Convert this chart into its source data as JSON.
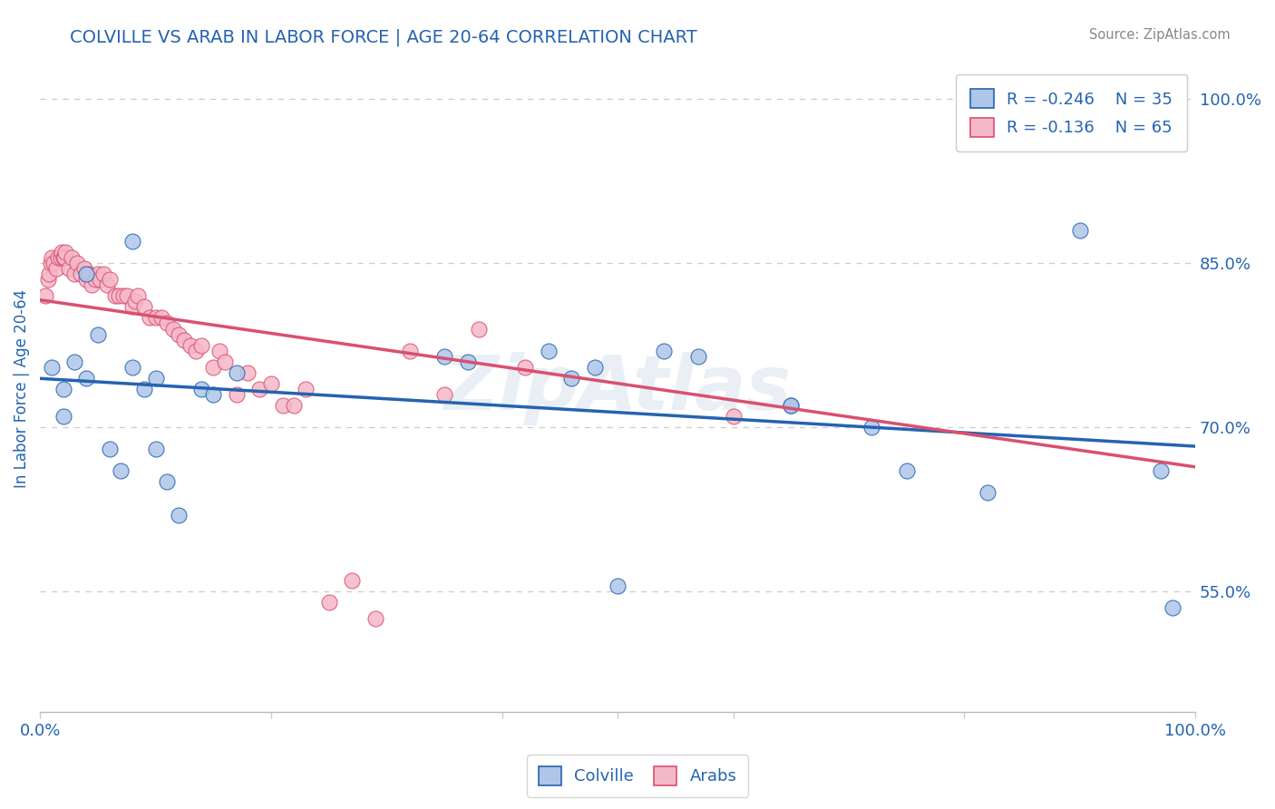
{
  "title": "COLVILLE VS ARAB IN LABOR FORCE | AGE 20-64 CORRELATION CHART",
  "source": "Source: ZipAtlas.com",
  "ylabel": "In Labor Force | Age 20-64",
  "xlim": [
    0.0,
    1.0
  ],
  "ylim": [
    0.44,
    1.03
  ],
  "ytick_right": [
    0.55,
    0.7,
    0.85,
    1.0
  ],
  "ytick_right_labels": [
    "55.0%",
    "70.0%",
    "85.0%",
    "100.0%"
  ],
  "colville_color": "#aec6e8",
  "arab_color": "#f5b8c8",
  "colville_line_color": "#2563b0",
  "arab_line_color": "#d95070",
  "colville_R": -0.246,
  "colville_N": 35,
  "arab_R": -0.136,
  "arab_N": 65,
  "colville_scatter_x": [
    0.01,
    0.02,
    0.02,
    0.03,
    0.04,
    0.04,
    0.05,
    0.06,
    0.07,
    0.08,
    0.08,
    0.09,
    0.1,
    0.1,
    0.11,
    0.12,
    0.14,
    0.15,
    0.17,
    0.35,
    0.37,
    0.44,
    0.46,
    0.48,
    0.5,
    0.54,
    0.57,
    0.65,
    0.65,
    0.72,
    0.75,
    0.82,
    0.9,
    0.97,
    0.98
  ],
  "colville_scatter_y": [
    0.755,
    0.735,
    0.71,
    0.76,
    0.84,
    0.745,
    0.785,
    0.68,
    0.66,
    0.87,
    0.755,
    0.735,
    0.745,
    0.68,
    0.65,
    0.62,
    0.735,
    0.73,
    0.75,
    0.765,
    0.76,
    0.77,
    0.745,
    0.755,
    0.555,
    0.77,
    0.765,
    0.72,
    0.72,
    0.7,
    0.66,
    0.64,
    0.88,
    0.66,
    0.535
  ],
  "arab_scatter_x": [
    0.005,
    0.007,
    0.008,
    0.009,
    0.01,
    0.012,
    0.014,
    0.016,
    0.018,
    0.019,
    0.02,
    0.021,
    0.022,
    0.025,
    0.027,
    0.03,
    0.032,
    0.035,
    0.038,
    0.04,
    0.042,
    0.045,
    0.048,
    0.05,
    0.052,
    0.055,
    0.058,
    0.06,
    0.065,
    0.068,
    0.072,
    0.075,
    0.08,
    0.082,
    0.085,
    0.09,
    0.095,
    0.1,
    0.105,
    0.11,
    0.115,
    0.12,
    0.125,
    0.13,
    0.135,
    0.14,
    0.15,
    0.155,
    0.16,
    0.17,
    0.18,
    0.19,
    0.2,
    0.21,
    0.22,
    0.23,
    0.25,
    0.27,
    0.29,
    0.32,
    0.35,
    0.38,
    0.42,
    0.6,
    0.9
  ],
  "arab_scatter_y": [
    0.82,
    0.835,
    0.84,
    0.85,
    0.855,
    0.85,
    0.845,
    0.855,
    0.855,
    0.86,
    0.855,
    0.855,
    0.86,
    0.845,
    0.855,
    0.84,
    0.85,
    0.84,
    0.845,
    0.835,
    0.84,
    0.83,
    0.835,
    0.84,
    0.835,
    0.84,
    0.83,
    0.835,
    0.82,
    0.82,
    0.82,
    0.82,
    0.81,
    0.815,
    0.82,
    0.81,
    0.8,
    0.8,
    0.8,
    0.795,
    0.79,
    0.785,
    0.78,
    0.775,
    0.77,
    0.775,
    0.755,
    0.77,
    0.76,
    0.73,
    0.75,
    0.735,
    0.74,
    0.72,
    0.72,
    0.735,
    0.54,
    0.56,
    0.525,
    0.77,
    0.73,
    0.79,
    0.755,
    0.71,
    0.975
  ],
  "watermark": "ZipAtlas",
  "background_color": "#ffffff",
  "grid_color": "#cccccc",
  "title_color": "#2563b0",
  "axis_label_color": "#2563b0",
  "tick_label_color": "#2563b0",
  "legend_text_color": "#2563b0",
  "source_color": "#888888"
}
